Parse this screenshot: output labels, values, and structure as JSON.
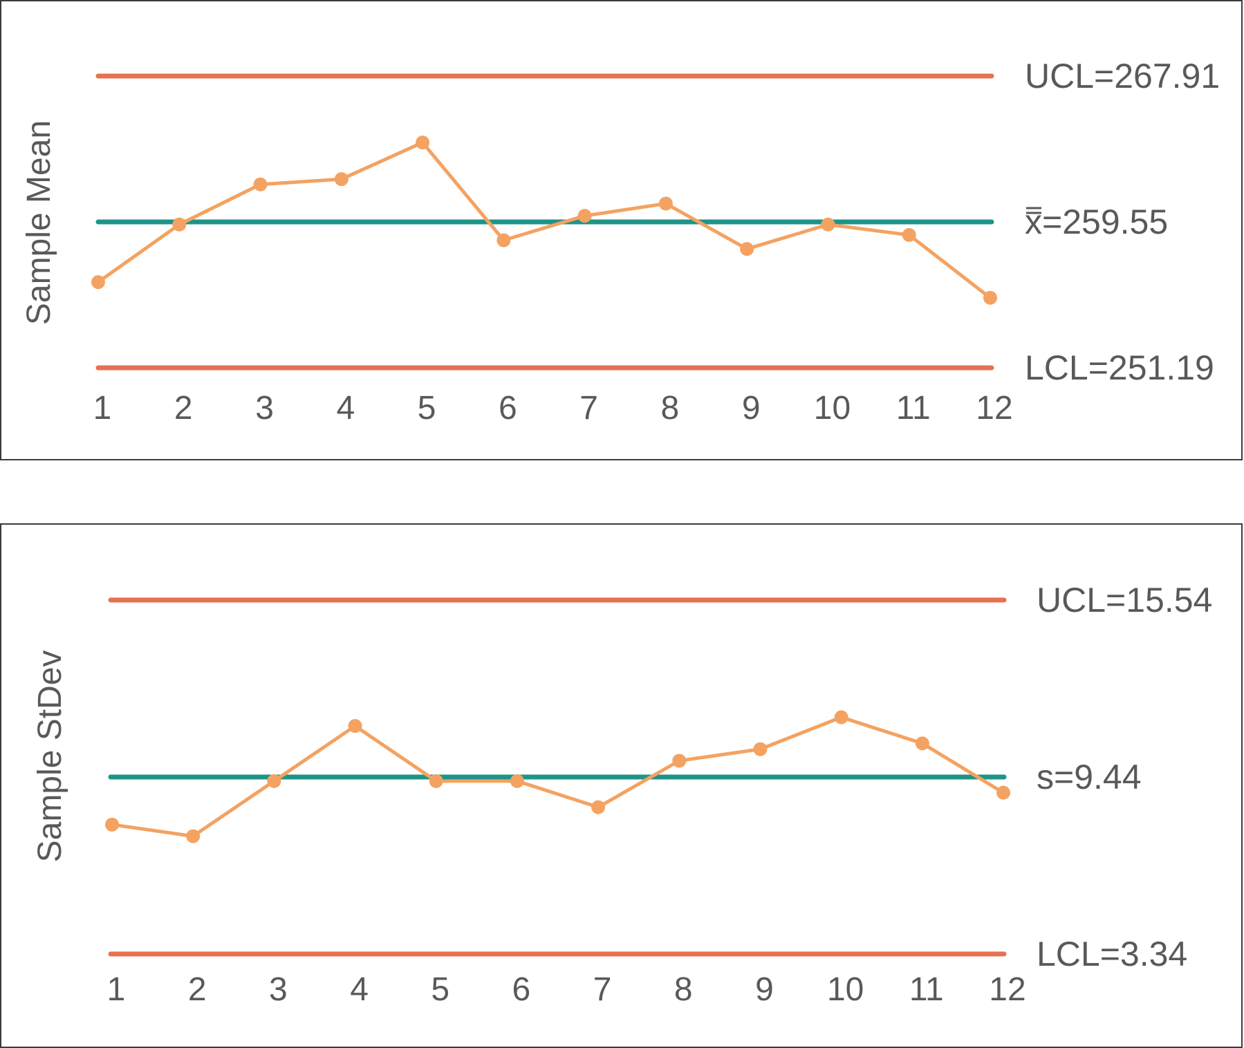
{
  "colors": {
    "control_limit": "#E8704F",
    "center_line": "#1E9488",
    "series": "#F4A261",
    "text": "#595959",
    "border": "#3a3a3a"
  },
  "chart_data": [
    {
      "type": "line",
      "ylabel": "Sample Mean",
      "categories": [
        "1",
        "2",
        "3",
        "4",
        "5",
        "6",
        "7",
        "8",
        "9",
        "10",
        "11",
        "12"
      ],
      "values": [
        256.1,
        259.4,
        261.7,
        262.0,
        264.1,
        258.5,
        259.9,
        260.6,
        258.0,
        259.4,
        258.8,
        255.2
      ],
      "ylim": [
        251.19,
        267.91
      ],
      "reference_lines": [
        {
          "kind": "ucl",
          "value": 267.91,
          "label": "UCL=267.91"
        },
        {
          "kind": "center",
          "value": 259.55,
          "label_prefix": "x",
          "label": "=259.55"
        },
        {
          "kind": "lcl",
          "value": 251.19,
          "label": "LCL=251.19"
        }
      ],
      "grid": false,
      "legend": "none"
    },
    {
      "type": "line",
      "ylabel": "Sample StDev",
      "categories": [
        "1",
        "2",
        "3",
        "4",
        "5",
        "6",
        "7",
        "8",
        "9",
        "10",
        "11",
        "12"
      ],
      "values": [
        7.8,
        7.4,
        9.3,
        11.2,
        9.3,
        9.3,
        8.4,
        10.0,
        10.4,
        11.5,
        10.6,
        8.9
      ],
      "ylim": [
        3.34,
        15.54
      ],
      "reference_lines": [
        {
          "kind": "ucl",
          "value": 15.54,
          "label": "UCL=15.54"
        },
        {
          "kind": "center",
          "value": 9.44,
          "label": "s=9.44"
        },
        {
          "kind": "lcl",
          "value": 3.34,
          "label": "LCL=3.34"
        }
      ],
      "grid": false,
      "legend": "none"
    }
  ]
}
